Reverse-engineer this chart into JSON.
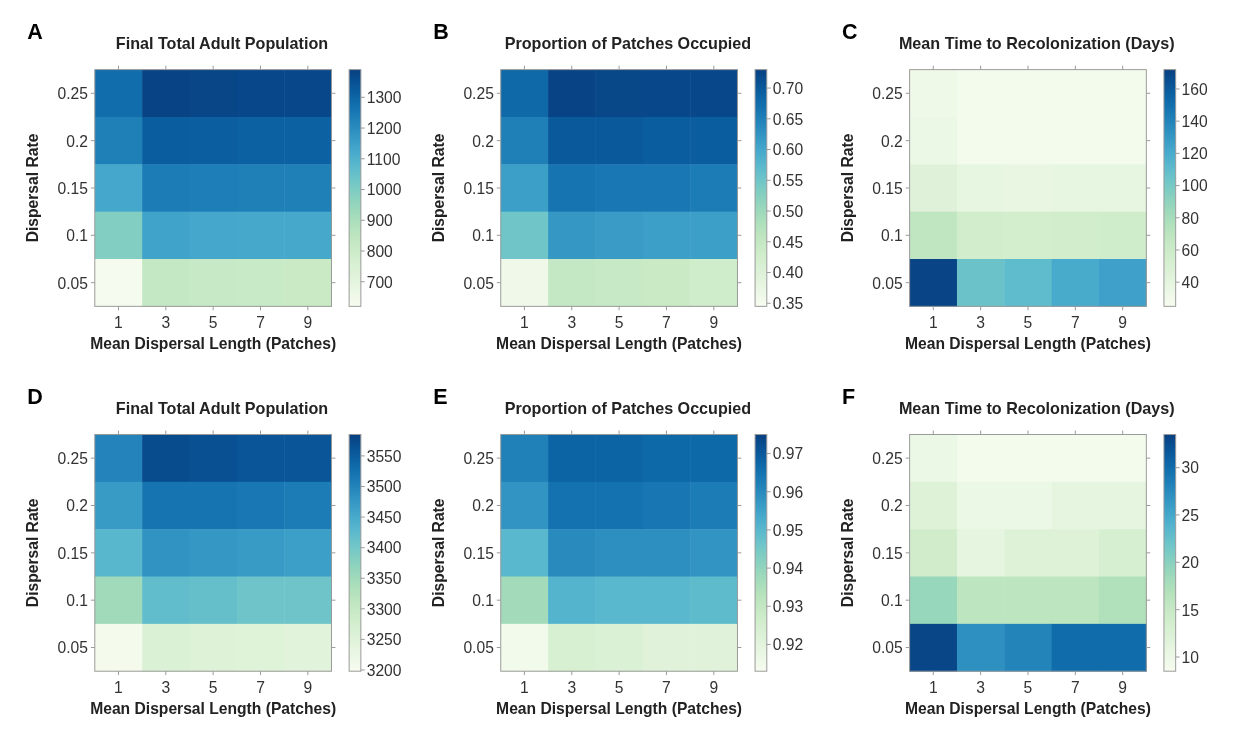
{
  "chart_data": [
    {
      "type": "heatmap",
      "title": "Final Total Adult Population",
      "xlabel": "Mean Dispersal Length (Patches)",
      "ylabel": "Dispersal Rate",
      "annotations": [
        "A"
      ],
      "categories": [
        "1",
        "3",
        "5",
        "7",
        "9"
      ],
      "y_categories": [
        "0.25",
        "0.2",
        "0.15",
        "0.1",
        "0.05"
      ],
      "cells": [
        [
          1280,
          1380,
          1375,
          1370,
          1370
        ],
        [
          1230,
          1320,
          1315,
          1310,
          1310
        ],
        [
          1130,
          1240,
          1235,
          1230,
          1230
        ],
        [
          990,
          1140,
          1130,
          1125,
          1125
        ],
        [
          630,
          830,
          820,
          815,
          810
        ]
      ],
      "clim": [
        620,
        1390
      ],
      "cticks": [
        700,
        800,
        900,
        1000,
        1100,
        1200,
        1300
      ]
    },
    {
      "type": "heatmap",
      "title": "Proportion of Patches Occupied",
      "xlabel": "Mean Dispersal Length (Patches)",
      "ylabel": "Dispersal Rate",
      "annotations": [
        "B"
      ],
      "categories": [
        "1",
        "3",
        "5",
        "7",
        "9"
      ],
      "y_categories": [
        "0.25",
        "0.2",
        "0.15",
        "0.1",
        "0.05"
      ],
      "cells": [
        [
          0.68,
          0.725,
          0.722,
          0.72,
          0.72
        ],
        [
          0.65,
          0.7,
          0.7,
          0.695,
          0.695
        ],
        [
          0.61,
          0.665,
          0.66,
          0.66,
          0.655
        ],
        [
          0.55,
          0.62,
          0.615,
          0.61,
          0.61
        ],
        [
          0.36,
          0.45,
          0.445,
          0.44,
          0.43
        ]
      ],
      "clim": [
        0.345,
        0.73
      ],
      "cticks": [
        {
          "value": 0.35,
          "label": "0.35"
        },
        {
          "value": 0.4,
          "label": "0.40"
        },
        0.45,
        {
          "value": 0.5,
          "label": "0.50"
        },
        0.55,
        {
          "value": 0.6,
          "label": "0.60"
        },
        0.65,
        {
          "value": 0.7,
          "label": "0.70"
        }
      ]
    },
    {
      "type": "heatmap",
      "title": "Mean Time to Recolonization (Days)",
      "xlabel": "Mean Dispersal Length (Patches)",
      "ylabel": "Dispersal Rate",
      "annotations": [
        "C"
      ],
      "categories": [
        "1",
        "3",
        "5",
        "7",
        "9"
      ],
      "y_categories": [
        "0.25",
        "0.2",
        "0.15",
        "0.1",
        "0.05"
      ],
      "cells": [
        [
          32,
          28,
          28,
          28,
          28
        ],
        [
          34,
          28,
          28,
          28,
          28
        ],
        [
          45,
          38,
          37,
          38,
          38
        ],
        [
          68,
          56,
          55,
          56,
          57
        ],
        [
          170,
          105,
          110,
          120,
          125
        ]
      ],
      "clim": [
        25,
        172
      ],
      "cticks": [
        40,
        60,
        80,
        100,
        120,
        140,
        160
      ]
    },
    {
      "type": "heatmap",
      "title": "Final Total Adult Population",
      "xlabel": "Mean Dispersal Length (Patches)",
      "ylabel": "Dispersal Rate",
      "annotations": [
        "D"
      ],
      "categories": [
        "1",
        "3",
        "5",
        "7",
        "9"
      ],
      "y_categories": [
        "0.25",
        "0.2",
        "0.15",
        "0.1",
        "0.05"
      ],
      "cells": [
        [
          3500,
          3570,
          3565,
          3560,
          3560
        ],
        [
          3470,
          3520,
          3520,
          3515,
          3510
        ],
        [
          3430,
          3480,
          3475,
          3470,
          3465
        ],
        [
          3350,
          3420,
          3415,
          3405,
          3405
        ],
        [
          3205,
          3260,
          3255,
          3250,
          3245
        ]
      ],
      "clim": [
        3198,
        3585
      ],
      "cticks": [
        3200,
        3250,
        3300,
        3350,
        3400,
        3450,
        3500,
        3550
      ]
    },
    {
      "type": "heatmap",
      "title": "Proportion of Patches Occupied",
      "xlabel": "Mean Dispersal Length (Patches)",
      "ylabel": "Dispersal Rate",
      "annotations": [
        "E"
      ],
      "categories": [
        "1",
        "3",
        "5",
        "7",
        "9"
      ],
      "y_categories": [
        "0.25",
        "0.2",
        "0.15",
        "0.1",
        "0.05"
      ],
      "cells": [
        [
          0.962,
          0.968,
          0.968,
          0.967,
          0.967
        ],
        [
          0.958,
          0.965,
          0.965,
          0.964,
          0.963
        ],
        [
          0.95,
          0.96,
          0.959,
          0.959,
          0.958
        ],
        [
          0.937,
          0.951,
          0.95,
          0.95,
          0.949
        ],
        [
          0.915,
          0.924,
          0.923,
          0.921,
          0.921
        ]
      ],
      "clim": [
        0.913,
        0.975
      ],
      "cticks": [
        0.92,
        0.93,
        0.94,
        0.95,
        0.96,
        0.97
      ]
    },
    {
      "type": "heatmap",
      "title": "Mean Time to Recolonization (Days)",
      "xlabel": "Mean Dispersal Length (Patches)",
      "ylabel": "Dispersal Rate",
      "annotations": [
        "F"
      ],
      "categories": [
        "1",
        "3",
        "5",
        "7",
        "9"
      ],
      "y_categories": [
        "0.25",
        "0.2",
        "0.15",
        "0.1",
        "0.05"
      ],
      "cells": [
        [
          10,
          9,
          9,
          9,
          9
        ],
        [
          12,
          10,
          10,
          11,
          11
        ],
        [
          14,
          11,
          12,
          12,
          13
        ],
        [
          19,
          16,
          16,
          16,
          17
        ],
        [
          33,
          27,
          28,
          30,
          30
        ]
      ],
      "clim": [
        8.5,
        33.5
      ],
      "cticks": [
        10,
        15,
        20,
        25,
        30
      ]
    }
  ]
}
